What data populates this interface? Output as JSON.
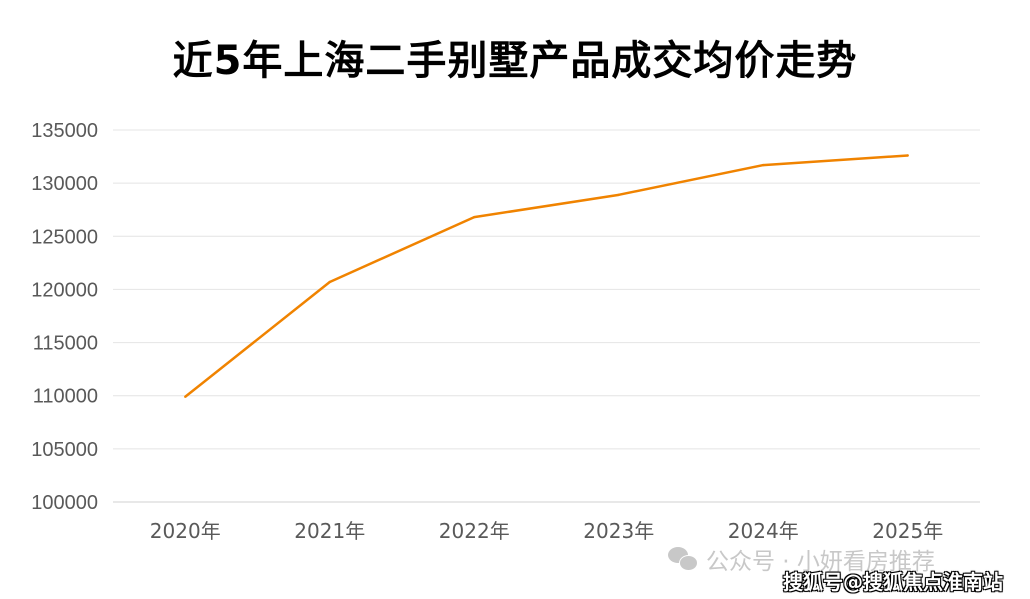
{
  "chart_data": {
    "type": "line",
    "title": "近5年上海二手别墅产品成交均价走势",
    "categories": [
      "2020年",
      "2021年",
      "2022年",
      "2023年",
      "2024年",
      "2025年"
    ],
    "series": [
      {
        "values": [
          109900,
          120700,
          126800,
          128900,
          131700,
          132600
        ],
        "color": "#F08300"
      }
    ],
    "xlabel": "",
    "ylabel": "",
    "ylim": [
      100000,
      135000
    ],
    "yticks": [
      "100000",
      "105000",
      "110000",
      "115000",
      "120000",
      "125000",
      "130000",
      "135000"
    ],
    "grid": true,
    "legend": "none"
  },
  "watermark": {
    "icon": "wechat-icon",
    "line1": "公众号 · 小妍看房推荐",
    "line2": "搜狐号@搜狐焦点淮南站"
  }
}
